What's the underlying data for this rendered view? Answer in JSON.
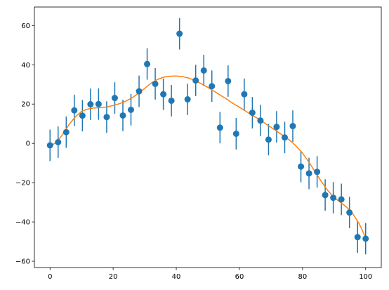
{
  "chart_data": {
    "type": "scatter",
    "title": "",
    "xlabel": "",
    "ylabel": "",
    "xlim": [
      -4.95,
      104.95
    ],
    "ylim": [
      -63.2,
      69.4
    ],
    "x_ticks": [
      0,
      20,
      40,
      60,
      80,
      100
    ],
    "y_ticks": [
      -60,
      -40,
      -20,
      0,
      20,
      40,
      60
    ],
    "x_tick_labels": [
      "0",
      "20",
      "40",
      "60",
      "80",
      "100"
    ],
    "y_tick_labels": [
      "−60",
      "−40",
      "−20",
      "0",
      "20",
      "40",
      "60"
    ],
    "grid": false,
    "legend": "none",
    "colors": {
      "points": "#1f77b4",
      "fit": "#ff7f0e",
      "axes": "#000000"
    },
    "series": [
      {
        "kind": "errorbar",
        "error": 8,
        "x": [
          0,
          2.56,
          5.13,
          7.69,
          10.26,
          12.82,
          15.38,
          17.95,
          20.51,
          23.08,
          25.64,
          28.21,
          30.77,
          33.33,
          35.9,
          38.46,
          41.03,
          43.59,
          46.15,
          48.72,
          51.28,
          53.85,
          56.41,
          58.97,
          61.54,
          64.1,
          66.67,
          69.23,
          71.79,
          74.36,
          76.92,
          79.49,
          82.05,
          84.62,
          87.18,
          89.74,
          92.31,
          94.87,
          97.44,
          100
        ],
        "y": [
          -1.0,
          0.6,
          5.7,
          16.8,
          14.1,
          19.9,
          20.0,
          13.4,
          23.1,
          14.2,
          17.1,
          26.5,
          40.4,
          30.3,
          25.0,
          21.7,
          55.8,
          22.4,
          32.0,
          37.1,
          29.1,
          8.0,
          31.7,
          4.9,
          25.0,
          15.6,
          11.6,
          1.9,
          8.4,
          3.0,
          8.8,
          -11.8,
          -15.3,
          -14.5,
          -26.3,
          -27.7,
          -28.5,
          -35.2,
          -47.7,
          -48.5
        ]
      },
      {
        "kind": "line",
        "x": [
          0,
          2,
          4,
          6,
          8,
          10,
          12,
          14,
          16,
          18,
          20,
          22,
          24,
          26,
          28,
          30,
          32,
          34,
          36,
          38,
          40,
          42,
          44,
          46,
          48,
          50,
          52,
          54,
          56,
          58,
          60,
          62,
          64,
          66,
          68,
          70,
          72,
          74,
          76,
          78,
          80,
          82,
          84,
          86,
          88,
          90,
          92,
          94,
          96,
          98,
          100
        ],
        "y": [
          -1.5,
          0.5,
          4.5,
          9.5,
          13.5,
          16.3,
          17.5,
          18.0,
          18.2,
          18.5,
          19.3,
          20.2,
          21.5,
          23.2,
          25.5,
          28.0,
          30.6,
          32.5,
          33.7,
          34.2,
          34.3,
          34.0,
          33.2,
          32.0,
          30.3,
          28.5,
          26.5,
          24.5,
          22.5,
          20.3,
          18.4,
          16.4,
          14.3,
          12.5,
          10.3,
          8.2,
          6.0,
          3.8,
          1.5,
          -1.4,
          -5.0,
          -9.5,
          -14.5,
          -19.5,
          -24.0,
          -27.5,
          -30.0,
          -32.5,
          -36.0,
          -41.0,
          -48.0
        ]
      }
    ]
  }
}
